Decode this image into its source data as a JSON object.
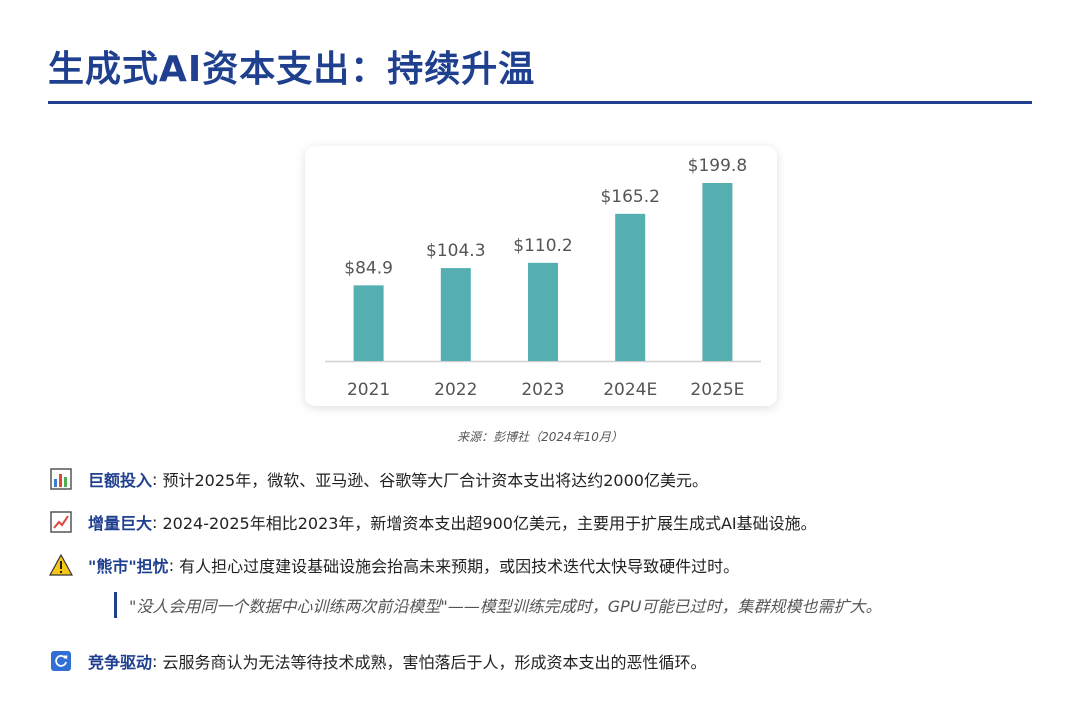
{
  "page": {
    "title": "生成式AI资本支出：持续升温",
    "source": "来源：彭博社（2024年10月）"
  },
  "colors": {
    "accent": "#1f3f8f",
    "bar": "#55aeb0",
    "axis": "#d0d0d0"
  },
  "chart_data": {
    "type": "bar",
    "categories": [
      "2021",
      "2022",
      "2023",
      "2024E",
      "2025E"
    ],
    "values": [
      84.9,
      104.3,
      110.2,
      165.2,
      199.8
    ],
    "labels": [
      "$84.9",
      "$104.3",
      "$110.2",
      "$165.2",
      "$199.8"
    ],
    "ylim": [
      0,
      199.8
    ],
    "grid": false,
    "legend": "none"
  },
  "bullets": [
    {
      "icon": "bar-chart-icon",
      "lead": "巨额投入",
      "sep": ": ",
      "text": "预计2025年，微软、亚马逊、谷歌等大厂合计资本支出将达约2000亿美元。"
    },
    {
      "icon": "trend-up-icon",
      "lead": "增量巨大",
      "sep": ": ",
      "text": "2024-2025年相比2023年，新增资本支出超900亿美元，主要用于扩展生成式AI基础设施。"
    },
    {
      "icon": "warning-icon",
      "lead": "\"熊市\"担忧",
      "sep": ": ",
      "text": "有人担心过度建设基础设施会抬高未来预期，或因技术迭代太快导致硬件过时。"
    },
    {
      "icon": "refresh-icon",
      "lead": "竞争驱动",
      "sep": ": ",
      "text": "云服务商认为无法等待技术成熟，害怕落后于人，形成资本支出的恶性循环。"
    }
  ],
  "quote": "\"没人会用同一个数据中心训练两次前沿模型\"——模型训练完成时，GPU可能已过时，集群规模也需扩大。"
}
